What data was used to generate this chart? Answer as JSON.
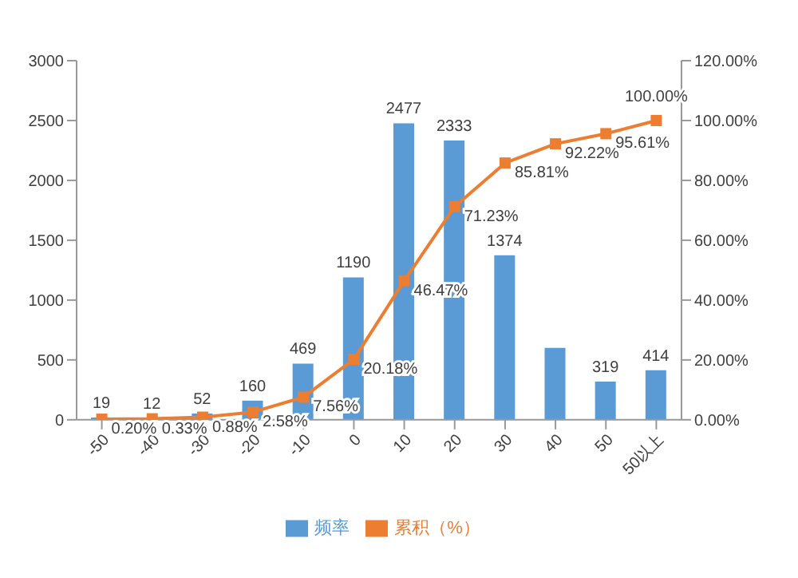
{
  "chart_data": {
    "type": "bar",
    "categories": [
      "-50",
      "-40",
      "-30",
      "-20",
      "-10",
      "0",
      "10",
      "20",
      "30",
      "40",
      "50",
      "50以上"
    ],
    "series": [
      {
        "name": "频率",
        "color": "#5b9bd5",
        "values": [
          19,
          12,
          52,
          160,
          469,
          1190,
          2477,
          2333,
          1374,
          600,
          319,
          414
        ],
        "value_labels": [
          "19",
          "12",
          "52",
          "160",
          "469",
          "1190",
          "2477",
          "2333",
          "1374",
          null,
          "319",
          "414"
        ]
      },
      {
        "name": "累积（%）",
        "type": "line",
        "axis": "y2",
        "color": "#ed7d31",
        "marker": "square",
        "values": [
          0.2,
          0.33,
          0.88,
          2.58,
          7.56,
          20.18,
          46.47,
          71.23,
          85.81,
          92.22,
          95.61,
          100.0
        ],
        "value_labels": [
          "0.20%",
          "0.33%",
          "0.88%",
          "2.58%",
          "7.56%",
          "20.18%",
          "46.47%",
          "71.23%",
          "85.81%",
          "92.22%",
          "95.61%",
          "100.00%"
        ]
      }
    ],
    "ylim": [
      0,
      3000
    ],
    "yticks": [
      0,
      500,
      1000,
      1500,
      2000,
      2500,
      3000
    ],
    "y2lim": [
      0,
      120
    ],
    "y2ticks": [
      {
        "value": 0,
        "label": "0.00%"
      },
      {
        "value": 20,
        "label": "20.00%"
      },
      {
        "value": 40,
        "label": "40.00%"
      },
      {
        "value": 60,
        "label": "60.00%"
      },
      {
        "value": 80,
        "label": "80.00%"
      },
      {
        "value": 100,
        "label": "100.00%"
      },
      {
        "value": 120,
        "label": "120.00%"
      }
    ],
    "grid": false,
    "legend": "bottom"
  }
}
